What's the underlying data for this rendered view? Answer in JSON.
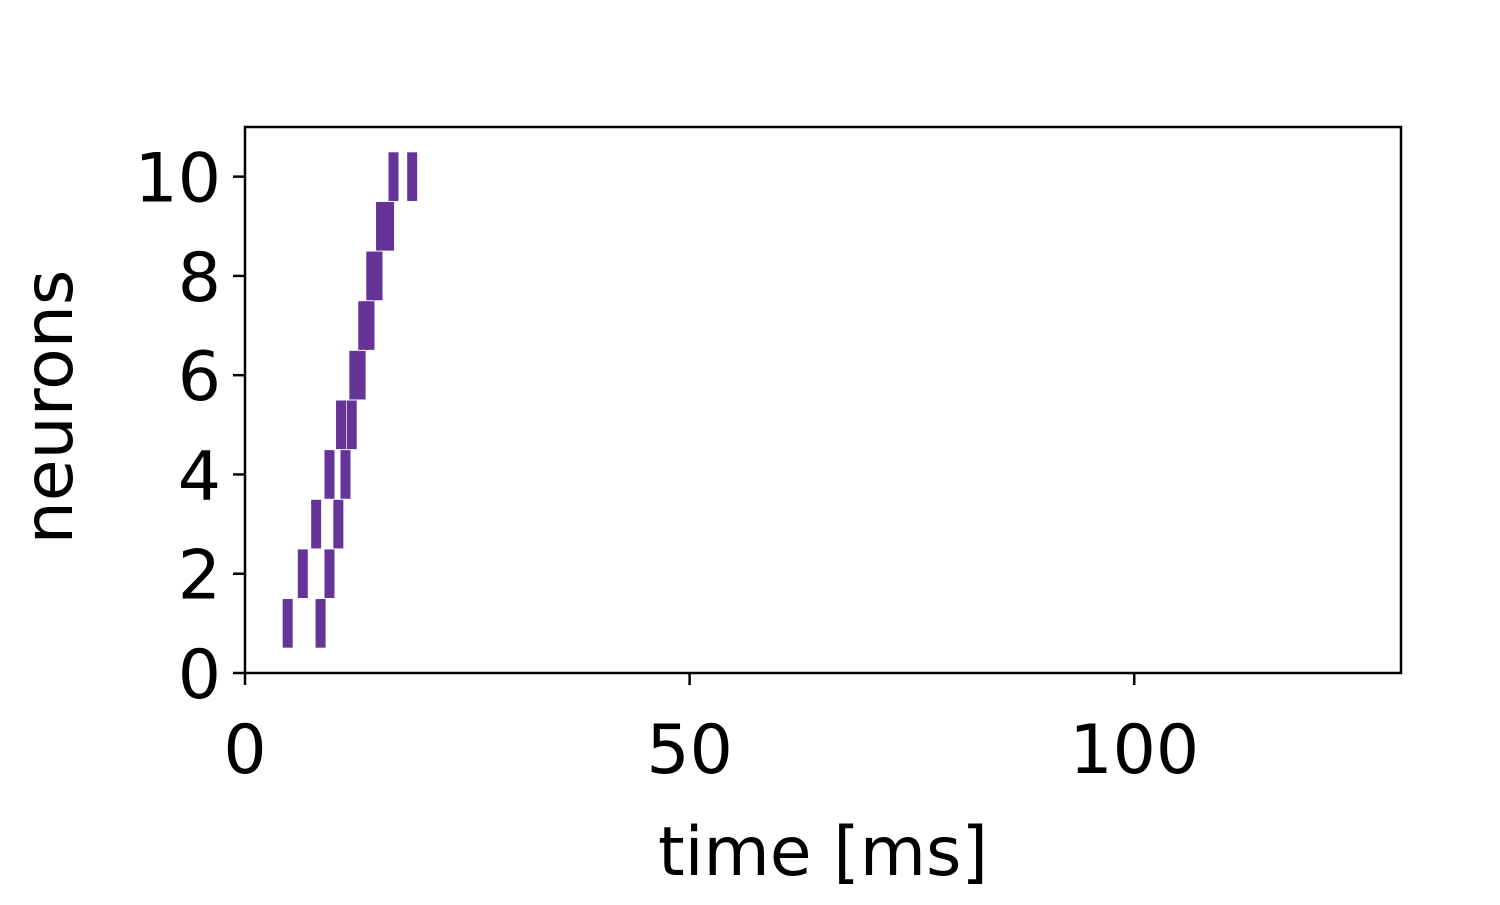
{
  "chart_data": {
    "type": "scatter",
    "marker": "vertical-bar",
    "xlabel": "time [ms]",
    "ylabel": "neurons",
    "xlim": [
      0,
      130
    ],
    "ylim": [
      0,
      11
    ],
    "xticks": [
      0,
      50,
      100
    ],
    "xtick_labels": [
      "0",
      "50",
      "100"
    ],
    "yticks": [
      0,
      2,
      4,
      6,
      8,
      10
    ],
    "ytick_labels": [
      "0",
      "2",
      "4",
      "6",
      "8",
      "10"
    ],
    "grid": false,
    "legend": "none",
    "color": "#663399",
    "series": [
      {
        "points": [
          {
            "x": 4.8,
            "y": 1
          },
          {
            "x": 8.5,
            "y": 1
          },
          {
            "x": 6.5,
            "y": 2
          },
          {
            "x": 9.5,
            "y": 2
          },
          {
            "x": 8.0,
            "y": 3
          },
          {
            "x": 10.5,
            "y": 3
          },
          {
            "x": 9.5,
            "y": 4
          },
          {
            "x": 11.3,
            "y": 4
          },
          {
            "x": 10.8,
            "y": 5
          },
          {
            "x": 12.0,
            "y": 5
          },
          {
            "x": 12.3,
            "y": 6
          },
          {
            "x": 13.0,
            "y": 6
          },
          {
            "x": 13.3,
            "y": 7
          },
          {
            "x": 14.0,
            "y": 7
          },
          {
            "x": 14.2,
            "y": 8
          },
          {
            "x": 14.9,
            "y": 8
          },
          {
            "x": 15.3,
            "y": 9
          },
          {
            "x": 16.2,
            "y": 9
          },
          {
            "x": 16.7,
            "y": 10
          },
          {
            "x": 18.8,
            "y": 10
          }
        ]
      }
    ]
  }
}
